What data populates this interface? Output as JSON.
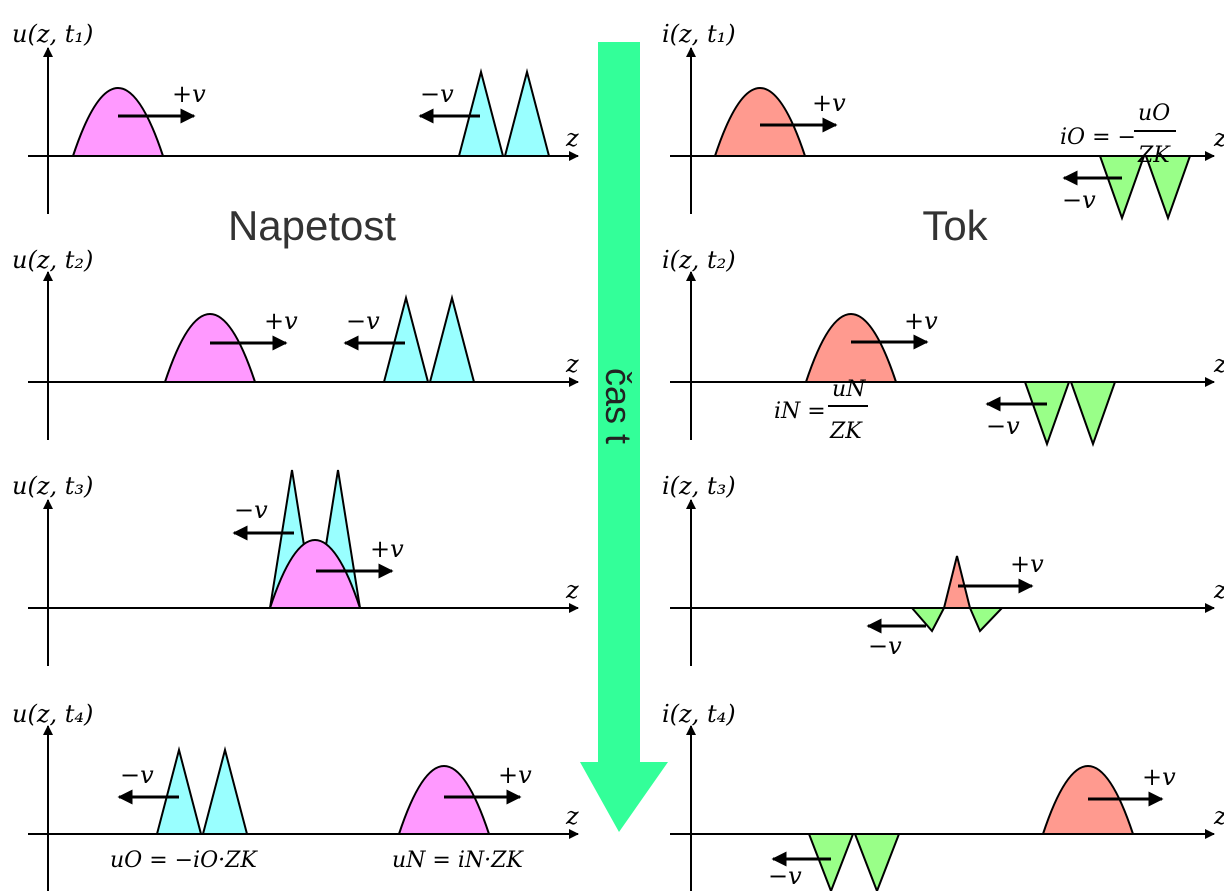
{
  "colors": {
    "voltage_forward": "#ff99ff",
    "voltage_backward": "#99ffff",
    "current_forward": "#ff9a8f",
    "current_backward": "#99ff88",
    "time_arrow": "#33ff99"
  },
  "titles": {
    "voltage": "Napetost",
    "current": "Tok"
  },
  "time_arrow_label": "čas  t",
  "axis_variable": "z",
  "velocity": {
    "forward": "+v",
    "backward": "−v"
  },
  "ylabels": {
    "voltage": [
      "u(z, t₁)",
      "u(z, t₂)",
      "u(z, t₃)",
      "u(z, t₄)"
    ],
    "current": [
      "i(z, t₁)",
      "i(z, t₂)",
      "i(z, t₃)",
      "i(z, t₄)"
    ]
  },
  "equations": {
    "i_reflected": {
      "lhs": "iO = −",
      "num": "uO",
      "den": "ZK"
    },
    "i_forward": {
      "lhs": "iN =",
      "num": "uN",
      "den": "ZK"
    },
    "u_reflected": "uO = −iO·ZK",
    "u_forward": "uN = iN·ZK"
  }
}
